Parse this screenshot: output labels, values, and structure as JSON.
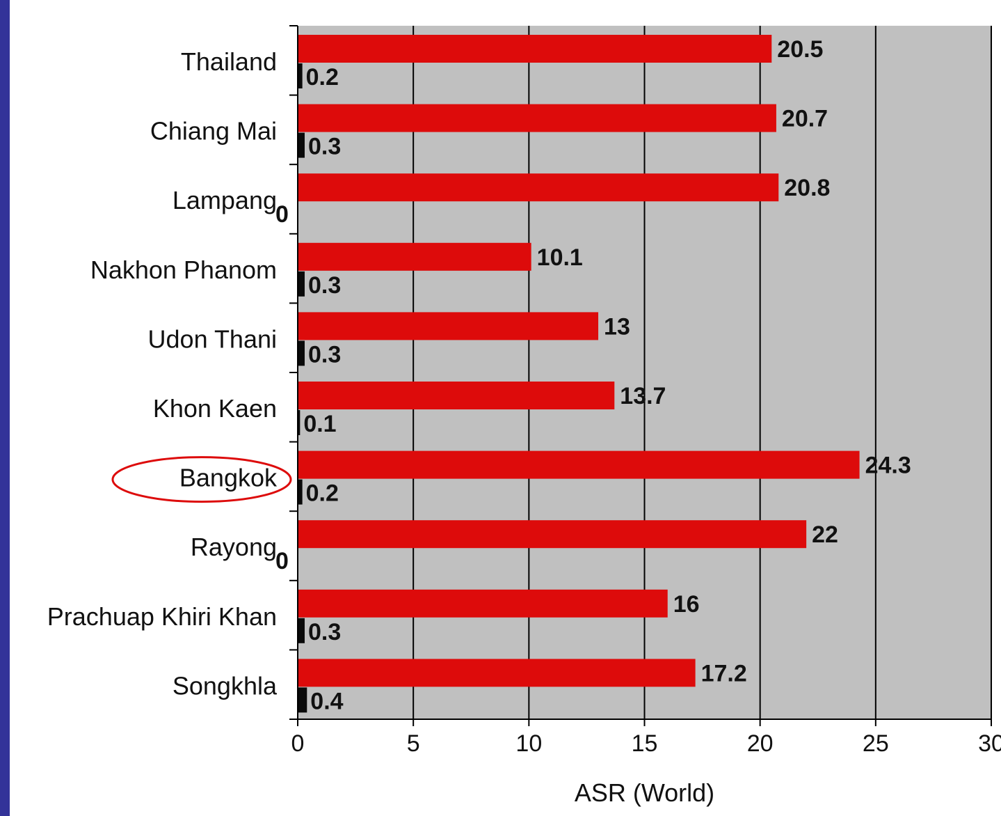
{
  "chart_data": {
    "type": "bar",
    "orientation": "horizontal",
    "categories": [
      "Thailand",
      "Chiang Mai",
      "Lampang",
      "Nakhon Phanom",
      "Udon Thani",
      "Khon Kaen",
      "Bangkok",
      "Rayong",
      "Prachuap Khiri Khan",
      "Songkhla"
    ],
    "series": [
      {
        "color": "#dd0b0b",
        "values": [
          20.5,
          20.7,
          20.8,
          10.1,
          13,
          13.7,
          24.3,
          22,
          16,
          17.2
        ]
      },
      {
        "color": "#0a0a0a",
        "values": [
          0.2,
          0.3,
          0,
          0.3,
          0.3,
          0.1,
          0.2,
          0,
          0.3,
          0.4
        ]
      }
    ],
    "data_labels": {
      "series0": [
        "20.5",
        "20.7",
        "20.8",
        "10.1",
        "13",
        "13.7",
        "24.3",
        "22",
        "16",
        "17.2"
      ],
      "series1": [
        "0.2",
        "0.3",
        "0",
        "0.3",
        "0.3",
        "0.1",
        "0.2",
        "0",
        "0.3",
        "0.4"
      ]
    },
    "xlabel": "ASR (World)",
    "xlim": [
      0,
      30
    ],
    "xticks": [
      0,
      5,
      10,
      15,
      20,
      25,
      30
    ],
    "grid": true,
    "plot_background": "#c0c0c0",
    "highlighted_category": "Bangkok",
    "highlight_color": "#dd0b0b"
  }
}
